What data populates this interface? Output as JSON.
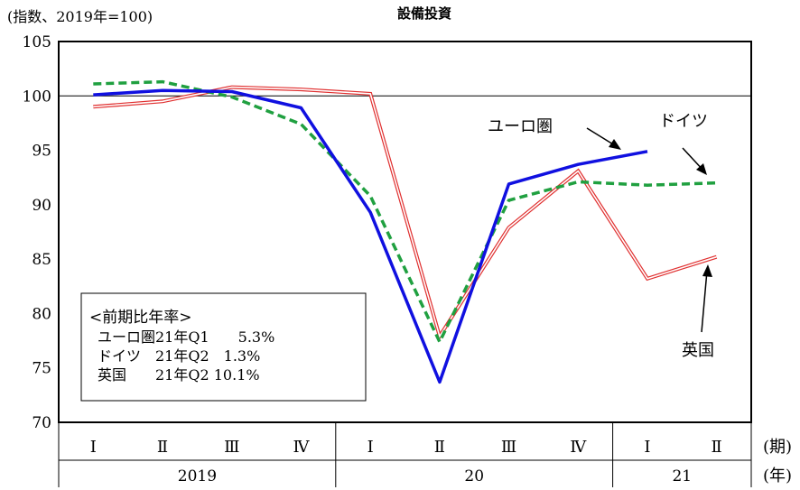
{
  "chart_data": {
    "type": "line",
    "title": "設備投資",
    "unit_label": "(指数、2019年=100)",
    "ylim": [
      70,
      105
    ],
    "yticks": [
      "105",
      "100",
      "95",
      "90",
      "85",
      "80",
      "75",
      "70"
    ],
    "reference_line": 100,
    "categories": [
      "Ⅰ",
      "Ⅱ",
      "Ⅲ",
      "Ⅳ",
      "Ⅰ",
      "Ⅱ",
      "Ⅲ",
      "Ⅳ",
      "Ⅰ",
      "Ⅱ"
    ],
    "years": [
      "2019",
      "20",
      "21"
    ],
    "x_axis_period_label": "(期)",
    "x_axis_year_label": "(年)",
    "series": [
      {
        "name": "ユーロ圏",
        "color": "#1010e0",
        "style": "solid-thick",
        "values": [
          100.1,
          100.5,
          100.4,
          98.9,
          89.3,
          73.7,
          91.9,
          93.7,
          94.9,
          null
        ]
      },
      {
        "name": "ドイツ",
        "color": "#20a040",
        "style": "dashed",
        "values": [
          101.1,
          101.3,
          99.9,
          97.4,
          90.8,
          77.4,
          90.4,
          92.1,
          91.8,
          92.0
        ]
      },
      {
        "name": "英国",
        "color": "#e03030",
        "style": "double",
        "values": [
          99.0,
          99.5,
          100.8,
          100.6,
          100.2,
          77.9,
          87.9,
          93.1,
          83.2,
          85.2
        ]
      }
    ],
    "legend_box": {
      "title": "<前期比年率>",
      "lines": [
        "ユーロ圏21年Q1　　5.3%",
        "ドイツ　21年Q2　1.3%",
        "英国　　21年Q2 10.1%"
      ]
    }
  }
}
